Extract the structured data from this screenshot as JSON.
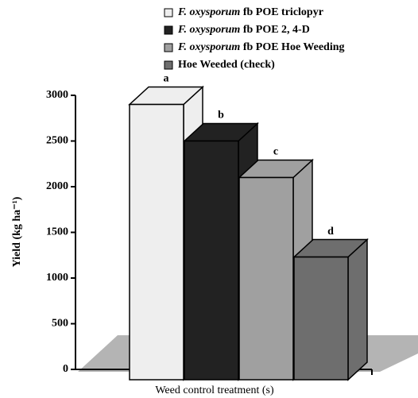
{
  "chart_data": {
    "type": "bar3d",
    "y_label": "Yield (kg ha⁻¹)",
    "x_label": "Weed control treatment (s)",
    "ylim": [
      0,
      3000
    ],
    "yticks": [
      0,
      500,
      1000,
      1500,
      2000,
      2500,
      3000
    ],
    "series": [
      {
        "name": "F. oxysporum fb POE triclopyr",
        "color": "#eeeeee",
        "values": [
          2900
        ],
        "label": "a"
      },
      {
        "name": "F. oxysporum fb POE 2, 4-D",
        "color": "#222222",
        "values": [
          2500
        ],
        "label": "b"
      },
      {
        "name": "F. oxysporum fb POE Hoe Weeding",
        "color": "#a0a0a0",
        "values": [
          2100
        ],
        "label": "c"
      },
      {
        "name": "Hoe Weeded (check)",
        "color": "#6e6e6e",
        "values": [
          1230
        ],
        "label": "d"
      }
    ]
  }
}
